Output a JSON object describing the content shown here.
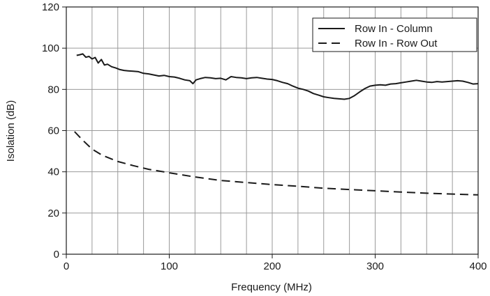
{
  "chart_data": {
    "type": "line",
    "title": "",
    "xlabel": "Frequency (MHz)",
    "ylabel": "Isolation (dB)",
    "xlim": [
      0,
      400
    ],
    "ylim": [
      0,
      120
    ],
    "x_ticks": [
      0,
      100,
      200,
      300,
      400
    ],
    "y_ticks": [
      0,
      20,
      40,
      60,
      80,
      100,
      120
    ],
    "x_tick_labels": [
      "0",
      "100",
      "200",
      "300",
      "400"
    ],
    "y_tick_labels": [
      "0",
      "20",
      "40",
      "60",
      "80",
      "100",
      "120"
    ],
    "x_grid_step": 25,
    "y_grid_step": 20,
    "grid": true,
    "legend_position": "top-right",
    "series": [
      {
        "name": "Row In - Column",
        "style": "solid",
        "color": "#1a1a1a",
        "x": [
          10,
          13,
          16,
          19,
          22,
          25,
          28,
          31,
          34,
          37,
          40,
          44,
          48,
          52,
          56,
          60,
          65,
          70,
          75,
          80,
          85,
          90,
          95,
          100,
          105,
          110,
          115,
          120,
          123,
          126,
          130,
          135,
          140,
          145,
          150,
          155,
          160,
          165,
          170,
          175,
          180,
          185,
          190,
          195,
          200,
          205,
          210,
          215,
          220,
          225,
          230,
          235,
          240,
          245,
          250,
          255,
          260,
          265,
          270,
          275,
          280,
          285,
          290,
          295,
          300,
          305,
          310,
          315,
          320,
          325,
          330,
          335,
          340,
          345,
          350,
          355,
          360,
          365,
          370,
          375,
          380,
          385,
          390,
          395,
          400
        ],
        "y": [
          96.5,
          96.8,
          97.2,
          95.6,
          96.0,
          94.8,
          95.5,
          92.8,
          94.5,
          91.8,
          92.2,
          91.0,
          90.4,
          89.6,
          89.2,
          89.0,
          88.8,
          88.6,
          87.8,
          87.5,
          87.0,
          86.5,
          86.8,
          86.2,
          86.0,
          85.4,
          84.6,
          84.2,
          82.8,
          84.6,
          85.2,
          85.8,
          85.6,
          85.2,
          85.4,
          84.6,
          86.2,
          85.8,
          85.6,
          85.2,
          85.6,
          85.8,
          85.4,
          85.0,
          84.8,
          84.2,
          83.4,
          82.8,
          81.6,
          80.6,
          80.0,
          79.2,
          78.0,
          77.2,
          76.4,
          76.0,
          75.6,
          75.4,
          75.2,
          75.6,
          77.0,
          78.8,
          80.4,
          81.6,
          82.0,
          82.2,
          82.0,
          82.6,
          82.8,
          83.2,
          83.6,
          84.0,
          84.4,
          84.0,
          83.6,
          83.4,
          83.8,
          83.6,
          83.8,
          84.0,
          84.2,
          84.0,
          83.4,
          82.6,
          82.8
        ]
      },
      {
        "name": "Row In - Row Out",
        "style": "dashed",
        "color": "#1a1a1a",
        "x": [
          8,
          15,
          25,
          35,
          50,
          65,
          80,
          100,
          125,
          150,
          175,
          200,
          225,
          250,
          275,
          300,
          325,
          350,
          375,
          400
        ],
        "y": [
          59.5,
          55.8,
          51.0,
          48.0,
          45.0,
          43.0,
          41.2,
          39.5,
          37.5,
          35.8,
          34.8,
          33.8,
          33.0,
          32.0,
          31.4,
          30.8,
          30.2,
          29.6,
          29.2,
          28.8
        ]
      }
    ]
  }
}
